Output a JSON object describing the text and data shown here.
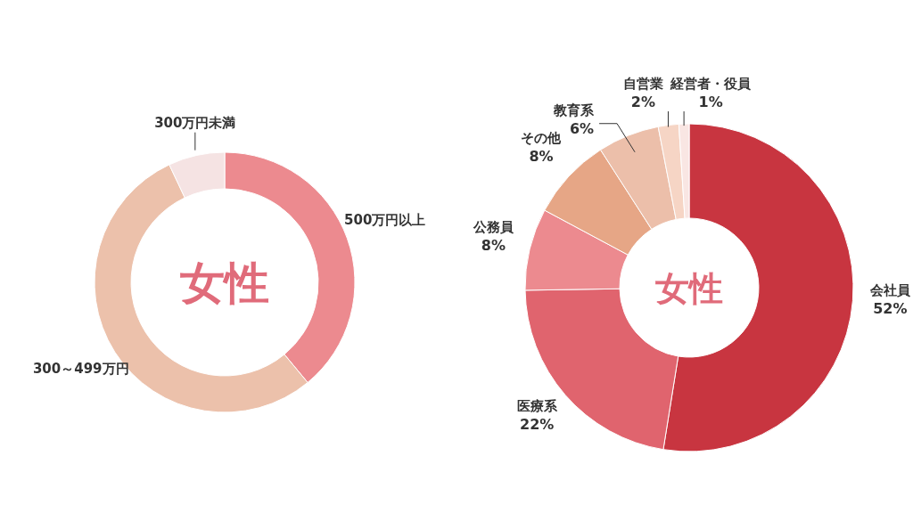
{
  "chart_data": [
    {
      "type": "donut",
      "title": "女性",
      "categories": [
        "500万円以上",
        "300～499万円",
        "300万円未満"
      ],
      "values": [
        39,
        54,
        7
      ],
      "colors": [
        "#ec8a8f",
        "#ecc1ab",
        "#f5e3e3"
      ]
    },
    {
      "type": "donut",
      "title": "女性",
      "categories": [
        "会社員",
        "医療系",
        "公務員",
        "その他",
        "教育系",
        "自営業",
        "経営者・役員"
      ],
      "values": [
        52,
        22,
        8,
        8,
        6,
        2,
        1
      ],
      "value_labels": [
        "52%",
        "22%",
        "8%",
        "8%",
        "6%",
        "2%",
        "1%"
      ],
      "colors": [
        "#c83540",
        "#e0646e",
        "#ec8a8f",
        "#e6a686",
        "#ecbfaa",
        "#f6d5c5",
        "#f9e6e3"
      ]
    }
  ]
}
